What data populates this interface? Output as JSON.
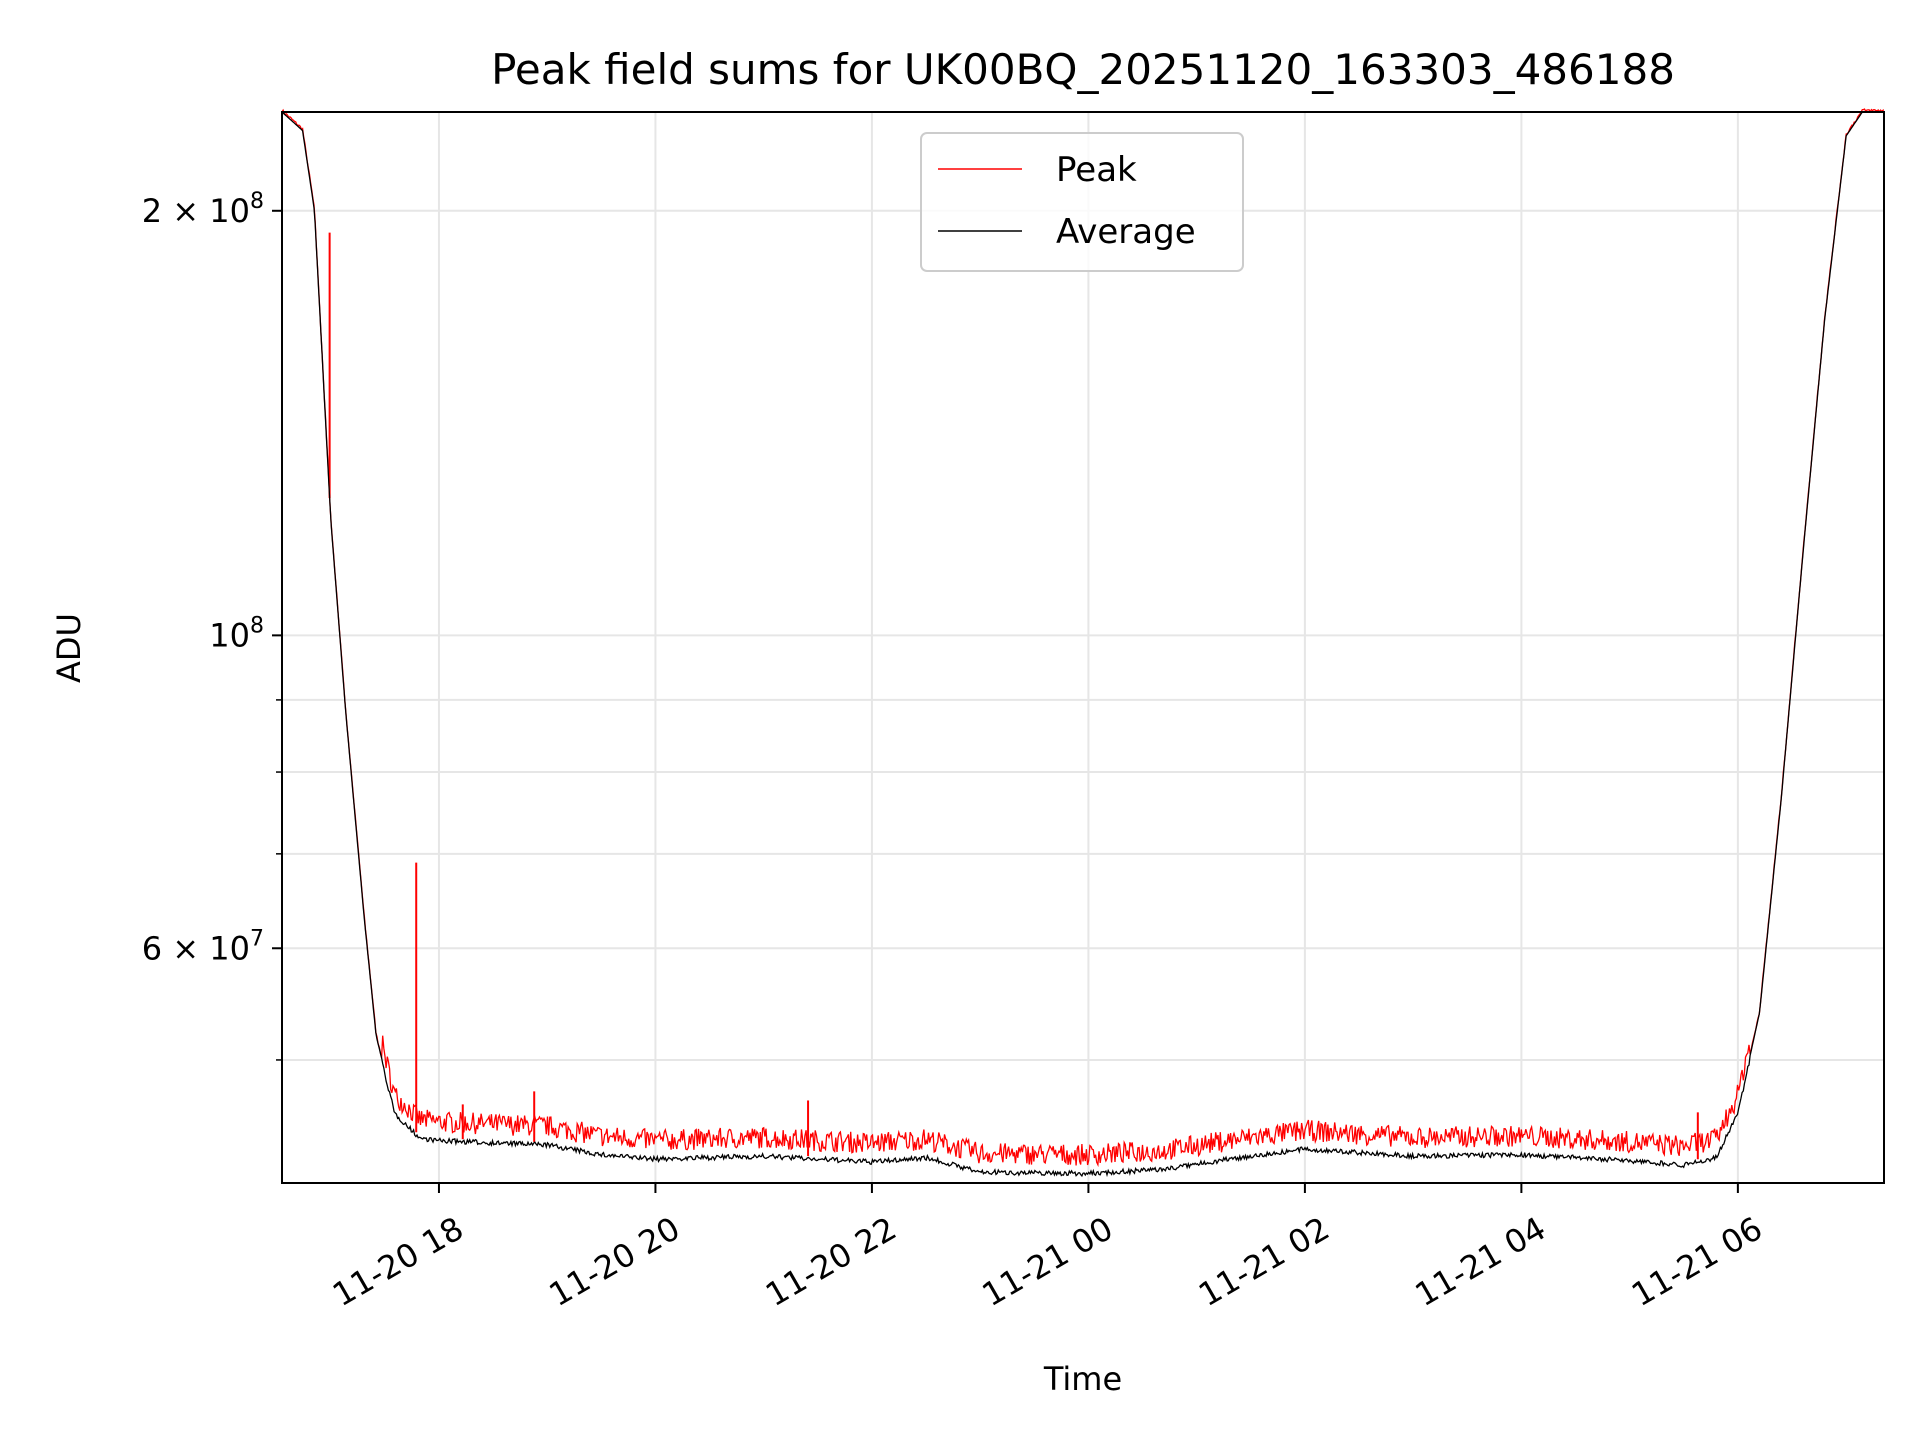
{
  "chart_data": {
    "type": "line",
    "title": "Peak field sums for UK00BQ_20251120_163303_486188",
    "xlabel": "Time",
    "ylabel": "ADU",
    "yscale": "log",
    "xlim_hours_from_11_20_00": [
      16.55,
      31.35
    ],
    "ylim": [
      40900000,
      235000000
    ],
    "grid": true,
    "legend_position": "upper-center",
    "x_ticks": [
      {
        "hour": 18,
        "label": "11-20 18"
      },
      {
        "hour": 20,
        "label": "11-20 20"
      },
      {
        "hour": 22,
        "label": "11-20 22"
      },
      {
        "hour": 24,
        "label": "11-21 00"
      },
      {
        "hour": 26,
        "label": "11-21 02"
      },
      {
        "hour": 28,
        "label": "11-21 04"
      },
      {
        "hour": 30,
        "label": "11-21 06"
      }
    ],
    "y_major_ticks": [
      {
        "value": 200000000,
        "mant": "2 × 10",
        "exp": "8"
      },
      {
        "value": 100000000,
        "mant": "10",
        "exp": "8"
      },
      {
        "value": 60000000,
        "mant": "6 × 10",
        "exp": "7"
      }
    ],
    "y_minor_ticks": [
      50000000,
      70000000,
      80000000,
      90000000
    ],
    "series": [
      {
        "name": "Average",
        "color": "#000000",
        "x_hours": [
          16.55,
          16.74,
          16.85,
          17.0,
          17.14,
          17.31,
          17.42,
          17.59,
          17.82,
          18.0,
          19.0,
          19.5,
          20.0,
          21.0,
          22.0,
          22.5,
          23.0,
          24.0,
          24.7,
          25.3,
          26.0,
          27.0,
          28.0,
          29.0,
          29.5,
          29.8,
          30.0,
          30.2,
          30.4,
          30.6,
          30.8,
          31.0,
          31.15,
          31.35
        ],
        "values": [
          235000000,
          228000000,
          200000000,
          121000000,
          88000000,
          63000000,
          52000000,
          46000000,
          44200000,
          44000000,
          43700000,
          43000000,
          42700000,
          42900000,
          42500000,
          42800000,
          41800000,
          41700000,
          42000000,
          42700000,
          43400000,
          42900000,
          43000000,
          42600000,
          42300000,
          42800000,
          46000000,
          54000000,
          76500000,
          114000000,
          167000000,
          226000000,
          235000000,
          235000000
        ]
      },
      {
        "name": "Peak",
        "color": "#ff0000",
        "typical_excess_over_average_pct": 3,
        "spikes": [
          {
            "hour": 16.99,
            "value": 193000000
          },
          {
            "hour": 17.79,
            "value": 69000000
          },
          {
            "hour": 18.22,
            "value": 46500000
          },
          {
            "hour": 18.88,
            "value": 47500000
          },
          {
            "hour": 21.41,
            "value": 46800000
          },
          {
            "hour": 29.63,
            "value": 45900000
          }
        ]
      }
    ]
  }
}
